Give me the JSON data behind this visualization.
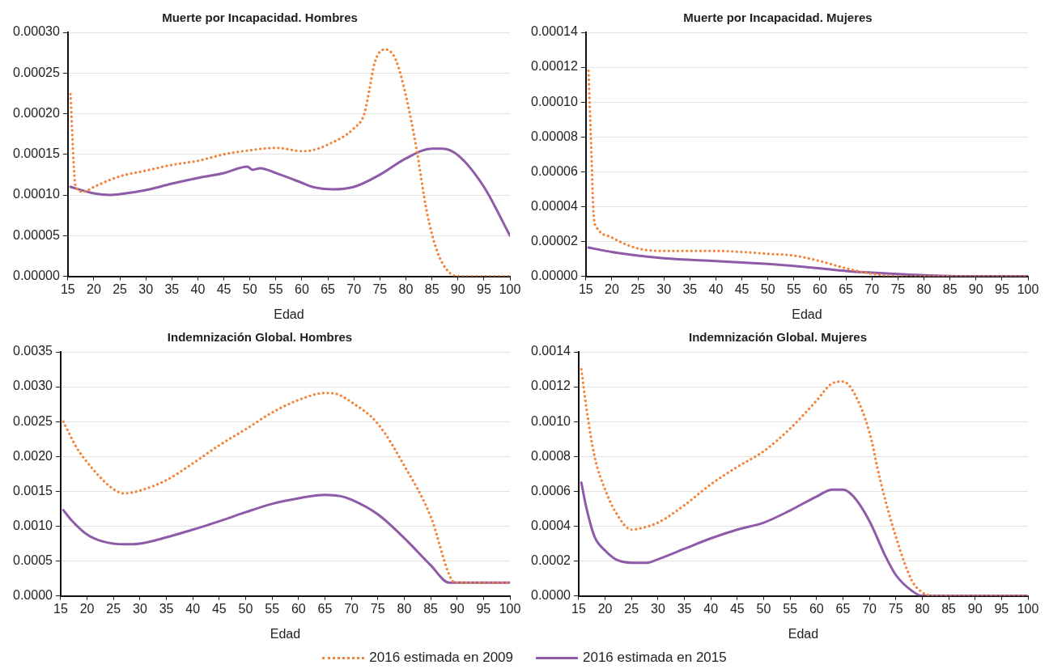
{
  "chart_data": [
    {
      "type": "line",
      "title": "Muerte por Incapacidad. Hombres",
      "xlabel": "Edad",
      "xlim": [
        15,
        100
      ],
      "xticks": [
        15,
        20,
        25,
        30,
        35,
        40,
        45,
        50,
        55,
        60,
        65,
        70,
        75,
        80,
        85,
        90,
        95,
        100
      ],
      "ylim": [
        0,
        0.0003
      ],
      "yticks": [
        {
          "value": 0,
          "label": "0.00000"
        },
        {
          "value": 5e-05,
          "label": "0.00005"
        },
        {
          "value": 0.0001,
          "label": "0.00010"
        },
        {
          "value": 0.00015,
          "label": "0.00015"
        },
        {
          "value": 0.0002,
          "label": "0.00020"
        },
        {
          "value": 0.00025,
          "label": "0.00025"
        },
        {
          "value": 0.0003,
          "label": "0.00030"
        }
      ],
      "grid": "y",
      "legend": "bottom",
      "series": [
        {
          "name": "2016 estimada en 2009",
          "color": "#f3843a",
          "line_style": "dotted",
          "x": [
            15.5,
            16.5,
            18,
            20,
            25,
            30,
            35,
            40,
            45,
            50,
            55,
            60,
            62,
            65,
            70,
            72,
            73,
            74,
            76,
            78,
            80,
            82,
            84,
            86,
            88,
            90,
            95,
            100
          ],
          "values": [
            0.000224,
            0.00011,
            0.000104,
            0.00011,
            0.000123,
            0.00013,
            0.000137,
            0.000142,
            0.00015,
            0.000155,
            0.000158,
            0.000154,
            0.000155,
            0.000162,
            0.000182,
            0.0002,
            0.00023,
            0.000263,
            0.000279,
            0.000267,
            0.000222,
            0.000158,
            8e-05,
            3.1e-05,
            7e-06,
            0,
            0,
            0
          ]
        },
        {
          "name": "2016 estimada en 2015",
          "color": "#8e5ba8",
          "line_style": "solid",
          "x": [
            15.5,
            20,
            23,
            25,
            30,
            35,
            40,
            45,
            49.5,
            50.5,
            52,
            55,
            60,
            62,
            66,
            70,
            75,
            80,
            85,
            87,
            90,
            95,
            100
          ],
          "values": [
            0.00011,
            0.000102,
            0.0001,
            0.000101,
            0.000106,
            0.000114,
            0.000121,
            0.000127,
            0.000135,
            0.000131,
            0.000133,
            0.000127,
            0.000115,
            0.00011,
            0.000107,
            0.00011,
            0.000125,
            0.000145,
            0.000157,
            0.000157,
            0.000149,
            0.00011,
            5e-05
          ]
        }
      ]
    },
    {
      "type": "line",
      "title": "Muerte por Incapacidad. Mujeres",
      "xlabel": "Edad",
      "xlim": [
        15,
        100
      ],
      "xticks": [
        15,
        20,
        25,
        30,
        35,
        40,
        45,
        50,
        55,
        60,
        65,
        70,
        75,
        80,
        85,
        90,
        95,
        100
      ],
      "ylim": [
        0,
        0.00014
      ],
      "yticks": [
        {
          "value": 0,
          "label": "0.00000"
        },
        {
          "value": 2e-05,
          "label": "0.00002"
        },
        {
          "value": 4e-05,
          "label": "0.00004"
        },
        {
          "value": 6e-05,
          "label": "0.00006"
        },
        {
          "value": 8e-05,
          "label": "0.00008"
        },
        {
          "value": 0.0001,
          "label": "0.00010"
        },
        {
          "value": 0.00012,
          "label": "0.00012"
        },
        {
          "value": 0.00014,
          "label": "0.00014"
        }
      ],
      "grid": "y",
      "series": [
        {
          "color": "#f3843a",
          "line_style": "dotted",
          "x": [
            15.5,
            16,
            16.5,
            17,
            20,
            25,
            30,
            40,
            45,
            50,
            55,
            60,
            65,
            70,
            75,
            80,
            90,
            100
          ],
          "values": [
            0.000118,
            7.65e-05,
            3.48e-05,
            2.85e-05,
            2.23e-05,
            1.6e-05,
            1.46e-05,
            1.46e-05,
            1.4e-05,
            1.29e-05,
            1.19e-05,
            8.75e-06,
            4.6e-06,
            1.5e-06,
            0,
            0,
            0,
            0
          ]
        },
        {
          "color": "#8e5ba8",
          "line_style": "solid",
          "x": [
            15.5,
            20,
            25,
            30,
            40,
            50,
            55,
            60,
            65,
            70,
            75,
            80,
            85,
            90,
            100
          ],
          "values": [
            1.65e-05,
            1.4e-05,
            1.19e-05,
            1.04e-05,
            8.75e-06,
            7.1e-06,
            6e-06,
            4.6e-06,
            3.1e-06,
            2.1e-06,
            1.3e-06,
            6e-07,
            2e-07,
            0,
            0
          ]
        }
      ]
    },
    {
      "type": "line",
      "title": "Indemnización Global. Hombres",
      "xlabel": "Edad",
      "xlim": [
        15,
        100
      ],
      "xticks": [
        15,
        20,
        25,
        30,
        35,
        40,
        45,
        50,
        55,
        60,
        65,
        70,
        75,
        80,
        85,
        90,
        95,
        100
      ],
      "ylim": [
        0,
        0.0035
      ],
      "yticks": [
        {
          "value": 0,
          "label": "0.0000"
        },
        {
          "value": 0.0005,
          "label": "0.0005"
        },
        {
          "value": 0.001,
          "label": "0.0010"
        },
        {
          "value": 0.0015,
          "label": "0.0015"
        },
        {
          "value": 0.002,
          "label": "0.0020"
        },
        {
          "value": 0.0025,
          "label": "0.0025"
        },
        {
          "value": 0.003,
          "label": "0.0030"
        },
        {
          "value": 0.0035,
          "label": "0.0035"
        }
      ],
      "grid": "y",
      "series": [
        {
          "color": "#f3843a",
          "line_style": "dotted",
          "x": [
            15.5,
            18,
            20,
            22,
            25,
            27,
            30,
            35,
            40,
            45,
            50,
            55,
            60,
            65,
            67,
            70,
            75,
            80,
            85,
            89,
            90,
            95,
            100
          ],
          "values": [
            0.0025,
            0.00213,
            0.00192,
            0.00174,
            0.00153,
            0.00147,
            0.00151,
            0.00166,
            0.0019,
            0.00216,
            0.00239,
            0.00263,
            0.00281,
            0.00291,
            0.0029,
            0.00278,
            0.00247,
            0.00187,
            0.00114,
            0.00023,
            0.00019,
            0.00019,
            0.00019
          ]
        },
        {
          "color": "#8e5ba8",
          "line_style": "solid",
          "x": [
            15.5,
            17,
            20,
            23,
            27,
            30,
            35,
            40,
            45,
            50,
            55,
            60,
            65,
            68,
            70,
            75,
            80,
            85,
            88.5,
            90,
            95,
            100
          ],
          "values": [
            0.00123,
            0.00109,
            0.00088,
            0.00078,
            0.00074,
            0.00075,
            0.00084,
            0.00095,
            0.00107,
            0.0012,
            0.00132,
            0.0014,
            0.00145,
            0.00143,
            0.00138,
            0.00117,
            0.00083,
            0.00044,
            0.00019,
            0.00019,
            0.00019,
            0.00019
          ]
        }
      ]
    },
    {
      "type": "line",
      "title": "Indemnización Global. Mujeres",
      "xlabel": "Edad",
      "xlim": [
        15,
        100
      ],
      "xticks": [
        15,
        20,
        25,
        30,
        35,
        40,
        45,
        50,
        55,
        60,
        65,
        70,
        75,
        80,
        85,
        90,
        95,
        100
      ],
      "ylim": [
        0,
        0.0014
      ],
      "yticks": [
        {
          "value": 0,
          "label": "0.0000"
        },
        {
          "value": 0.0002,
          "label": "0.0002"
        },
        {
          "value": 0.0004,
          "label": "0.0004"
        },
        {
          "value": 0.0006,
          "label": "0.0006"
        },
        {
          "value": 0.0008,
          "label": "0.0008"
        },
        {
          "value": 0.001,
          "label": "0.0010"
        },
        {
          "value": 0.0012,
          "label": "0.0012"
        },
        {
          "value": 0.0014,
          "label": "0.0014"
        }
      ],
      "grid": "y",
      "series": [
        {
          "color": "#f3843a",
          "line_style": "dotted",
          "x": [
            15.5,
            16.5,
            18,
            20,
            22,
            25,
            27,
            30,
            35,
            40,
            45,
            50,
            55,
            60,
            63,
            65,
            67,
            70,
            72,
            75,
            78,
            80,
            82,
            90,
            100
          ],
          "values": [
            0.0013,
            0.00107,
            0.0008,
            0.00061,
            0.00048,
            0.00038,
            0.00039,
            0.00042,
            0.00052,
            0.00064,
            0.00074,
            0.00083,
            0.00096,
            0.00112,
            0.00122,
            0.00123,
            0.00117,
            0.00094,
            0.00067,
            0.00034,
            9e-05,
            2e-05,
            0,
            0,
            0
          ]
        },
        {
          "color": "#8e5ba8",
          "line_style": "solid",
          "x": [
            15.5,
            16.5,
            18,
            20,
            22,
            25,
            28,
            30,
            35,
            40,
            45,
            50,
            55,
            60,
            63,
            65,
            67,
            70,
            73,
            75,
            78,
            80,
            85,
            90,
            100
          ],
          "values": [
            0.00065,
            0.0005,
            0.00034,
            0.00026,
            0.00021,
            0.00019,
            0.00019,
            0.00021,
            0.00027,
            0.00033,
            0.00038,
            0.00042,
            0.00049,
            0.00057,
            0.00061,
            0.00061,
            0.00057,
            0.00043,
            0.00023,
            0.00012,
            3e-05,
            0,
            0,
            0,
            0
          ]
        }
      ]
    }
  ]
}
